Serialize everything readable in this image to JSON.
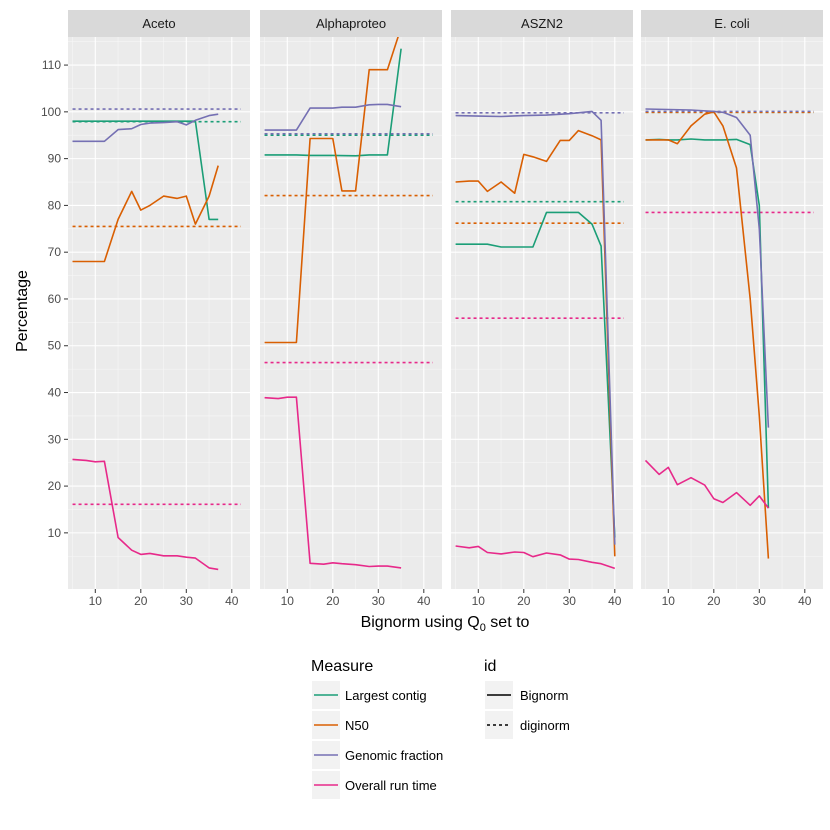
{
  "chart_data": {
    "type": "line",
    "xlabel": "Bignorm using Q",
    "xlabel_sub": "0",
    "xlabel_suffix": " set to",
    "ylabel": "Percentage",
    "xlim": [
      4,
      44
    ],
    "ylim": [
      -2,
      116
    ],
    "x_ticks": [
      10,
      20,
      30,
      40
    ],
    "y_ticks": [
      10,
      20,
      30,
      40,
      50,
      60,
      70,
      80,
      90,
      100,
      110
    ],
    "colors": {
      "largest_contig": "#1b9e77",
      "n50": "#d95f02",
      "genomic_fraction": "#7570b3",
      "run_time": "#e7298a"
    },
    "legend": {
      "measure_title": "Measure",
      "measures": [
        {
          "key": "largest_contig",
          "label": "Largest contig"
        },
        {
          "key": "n50",
          "label": "N50"
        },
        {
          "key": "genomic_fraction",
          "label": "Genomic fraction"
        },
        {
          "key": "run_time",
          "label": "Overall run time"
        }
      ],
      "id_title": "id",
      "ids": [
        {
          "key": "bignorm",
          "label": "Bignorm"
        },
        {
          "key": "diginorm",
          "label": "diginorm"
        }
      ]
    },
    "panels": [
      {
        "title": "Aceto",
        "bignorm": {
          "largest_contig": [
            [
              5,
              98
            ],
            [
              12,
              98
            ],
            [
              15,
              98
            ],
            [
              18,
              98
            ],
            [
              20,
              98
            ],
            [
              22,
              98
            ],
            [
              25,
              98
            ],
            [
              28,
              98
            ],
            [
              30,
              98
            ],
            [
              32,
              98
            ],
            [
              35,
              77
            ],
            [
              37,
              77
            ]
          ],
          "n50": [
            [
              5,
              68
            ],
            [
              12,
              68
            ],
            [
              15,
              77
            ],
            [
              18,
              83
            ],
            [
              20,
              79
            ],
            [
              22,
              80
            ],
            [
              25,
              82
            ],
            [
              28,
              81.5
            ],
            [
              30,
              82
            ],
            [
              32,
              76
            ],
            [
              35,
              82
            ],
            [
              37,
              88.5
            ]
          ],
          "genomic_fraction": [
            [
              5,
              93.7
            ],
            [
              12,
              93.7
            ],
            [
              15,
              96.2
            ],
            [
              18,
              96.4
            ],
            [
              20,
              97.3
            ],
            [
              22,
              97.6
            ],
            [
              25,
              97.7
            ],
            [
              28,
              97.9
            ],
            [
              30,
              97.2
            ],
            [
              32,
              98.2
            ],
            [
              35,
              99.2
            ],
            [
              37,
              99.5
            ]
          ],
          "run_time": [
            [
              5,
              25.7
            ],
            [
              8,
              25.5
            ],
            [
              10,
              25.2
            ],
            [
              12,
              25.3
            ],
            [
              15,
              9
            ],
            [
              18,
              6.3
            ],
            [
              20,
              5.4
            ],
            [
              22,
              5.6
            ],
            [
              25,
              5.1
            ],
            [
              28,
              5.1
            ],
            [
              30,
              4.8
            ],
            [
              32,
              4.6
            ],
            [
              35,
              2.5
            ],
            [
              37,
              2.2
            ]
          ]
        },
        "diginorm": {
          "largest_contig": 97.9,
          "n50": 75.5,
          "genomic_fraction": 100.6,
          "run_time": 16.1
        }
      },
      {
        "title": "Alphaproteo",
        "bignorm": {
          "largest_contig": [
            [
              5,
              90.8
            ],
            [
              10,
              90.8
            ],
            [
              12,
              90.8
            ],
            [
              15,
              90.7
            ],
            [
              20,
              90.7
            ],
            [
              25,
              90.6
            ],
            [
              28,
              90.8
            ],
            [
              30,
              90.8
            ],
            [
              32,
              90.8
            ],
            [
              35,
              113.5
            ]
          ],
          "n50": [
            [
              5,
              50.7
            ],
            [
              10,
              50.7
            ],
            [
              12,
              50.7
            ],
            [
              15,
              94.3
            ],
            [
              18,
              94.3
            ],
            [
              20,
              94.3
            ],
            [
              22,
              83.1
            ],
            [
              25,
              83.1
            ],
            [
              28,
              109
            ],
            [
              30,
              109
            ],
            [
              32,
              109
            ],
            [
              35,
              118
            ]
          ],
          "genomic_fraction": [
            [
              5,
              96.1
            ],
            [
              10,
              96.1
            ],
            [
              12,
              96.1
            ],
            [
              15,
              100.8
            ],
            [
              18,
              100.8
            ],
            [
              20,
              100.8
            ],
            [
              22,
              101
            ],
            [
              25,
              101
            ],
            [
              28,
              101.5
            ],
            [
              30,
              101.6
            ],
            [
              32,
              101.6
            ],
            [
              35,
              101.1
            ]
          ],
          "run_time": [
            [
              5,
              38.9
            ],
            [
              8,
              38.7
            ],
            [
              10,
              39
            ],
            [
              12,
              39
            ],
            [
              15,
              3.5
            ],
            [
              18,
              3.3
            ],
            [
              20,
              3.6
            ],
            [
              22,
              3.4
            ],
            [
              25,
              3.2
            ],
            [
              28,
              2.8
            ],
            [
              30,
              2.9
            ],
            [
              32,
              2.9
            ],
            [
              35,
              2.5
            ]
          ]
        },
        "diginorm": {
          "largest_contig": 95,
          "n50": 82.1,
          "genomic_fraction": 95.3,
          "run_time": 46.4
        }
      },
      {
        "title": "ASZN2",
        "bignorm": {
          "largest_contig": [
            [
              5,
              71.7
            ],
            [
              8,
              71.7
            ],
            [
              10,
              71.7
            ],
            [
              12,
              71.7
            ],
            [
              15,
              71.1
            ],
            [
              18,
              71.1
            ],
            [
              20,
              71.1
            ],
            [
              22,
              71.1
            ],
            [
              25,
              78.5
            ],
            [
              28,
              78.5
            ],
            [
              30,
              78.5
            ],
            [
              32,
              78.5
            ],
            [
              35,
              76
            ],
            [
              37,
              71.3
            ],
            [
              40,
              9
            ]
          ],
          "n50": [
            [
              5,
              85
            ],
            [
              8,
              85.2
            ],
            [
              10,
              85.2
            ],
            [
              12,
              83
            ],
            [
              15,
              85
            ],
            [
              18,
              82.6
            ],
            [
              20,
              90.9
            ],
            [
              22,
              90.4
            ],
            [
              25,
              89.4
            ],
            [
              28,
              93.9
            ],
            [
              30,
              93.9
            ],
            [
              32,
              96
            ],
            [
              35,
              94.9
            ],
            [
              37,
              94
            ],
            [
              40,
              5
            ]
          ],
          "genomic_fraction": [
            [
              5,
              99.2
            ],
            [
              10,
              99.1
            ],
            [
              15,
              99
            ],
            [
              20,
              99.2
            ],
            [
              25,
              99.3
            ],
            [
              30,
              99.6
            ],
            [
              35,
              100.1
            ],
            [
              37,
              98.2
            ],
            [
              40,
              7.5
            ]
          ],
          "run_time": [
            [
              5,
              7.2
            ],
            [
              8,
              6.8
            ],
            [
              10,
              7.1
            ],
            [
              12,
              5.8
            ],
            [
              15,
              5.5
            ],
            [
              18,
              5.9
            ],
            [
              20,
              5.8
            ],
            [
              22,
              4.9
            ],
            [
              25,
              5.7
            ],
            [
              28,
              5.3
            ],
            [
              30,
              4.4
            ],
            [
              32,
              4.3
            ],
            [
              35,
              3.7
            ],
            [
              37,
              3.4
            ],
            [
              40,
              2.4
            ]
          ]
        },
        "diginorm": {
          "largest_contig": 80.8,
          "n50": 76.2,
          "genomic_fraction": 99.8,
          "run_time": 55.9
        }
      },
      {
        "title": "E. coli",
        "bignorm": {
          "largest_contig": [
            [
              5,
              94
            ],
            [
              8,
              94.1
            ],
            [
              10,
              94
            ],
            [
              12,
              94
            ],
            [
              15,
              94.2
            ],
            [
              18,
              94
            ],
            [
              20,
              94
            ],
            [
              22,
              94
            ],
            [
              25,
              94.1
            ],
            [
              28,
              93
            ],
            [
              30,
              80
            ],
            [
              32,
              15.3
            ]
          ],
          "n50": [
            [
              5,
              94
            ],
            [
              8,
              94
            ],
            [
              10,
              94
            ],
            [
              12,
              93.2
            ],
            [
              15,
              97
            ],
            [
              18,
              99.5
            ],
            [
              20,
              100
            ],
            [
              22,
              97
            ],
            [
              25,
              88
            ],
            [
              28,
              60
            ],
            [
              30,
              35
            ],
            [
              32,
              4.5
            ]
          ],
          "genomic_fraction": [
            [
              5,
              100.6
            ],
            [
              10,
              100.5
            ],
            [
              15,
              100.4
            ],
            [
              20,
              100.1
            ],
            [
              22,
              99.9
            ],
            [
              25,
              98.8
            ],
            [
              28,
              95
            ],
            [
              30,
              75
            ],
            [
              32,
              32.5
            ]
          ],
          "run_time": [
            [
              5,
              25.5
            ],
            [
              8,
              22.5
            ],
            [
              10,
              24
            ],
            [
              12,
              20.3
            ],
            [
              15,
              21.8
            ],
            [
              18,
              20.2
            ],
            [
              20,
              17.3
            ],
            [
              22,
              16.5
            ],
            [
              25,
              18.6
            ],
            [
              28,
              15.9
            ],
            [
              30,
              17.9
            ],
            [
              32,
              15.3
            ]
          ]
        },
        "diginorm": {
          "largest_contig": 99.9,
          "n50": 99.9,
          "genomic_fraction": 100.1,
          "run_time": 78.5
        }
      }
    ]
  }
}
